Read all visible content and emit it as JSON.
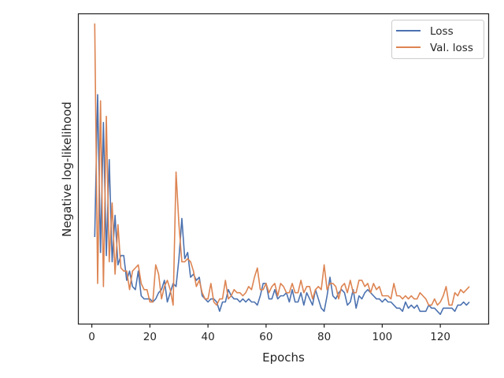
{
  "chart_data": {
    "type": "line",
    "title": "",
    "xlabel": "Epochs",
    "ylabel": "Negative log-likelihood",
    "xlim": [
      -4.5,
      136.5
    ],
    "ylim": [
      0.0,
      1.0
    ],
    "y_scale_note": "y tick labels not shown; values are relative (0 = bottom, 1 = top of axes)",
    "xticks": [
      0,
      20,
      40,
      60,
      80,
      100,
      120
    ],
    "grid": false,
    "legend_position": "top-right",
    "series": [
      {
        "name": "Loss",
        "color": "#4c72b0",
        "x": [
          1,
          2,
          3,
          4,
          5,
          6,
          7,
          8,
          9,
          10,
          11,
          12,
          13,
          14,
          15,
          16,
          17,
          18,
          19,
          20,
          21,
          22,
          23,
          24,
          25,
          26,
          27,
          28,
          29,
          30,
          31,
          32,
          33,
          34,
          35,
          36,
          37,
          38,
          39,
          40,
          41,
          42,
          43,
          44,
          45,
          46,
          47,
          48,
          49,
          50,
          51,
          52,
          53,
          54,
          55,
          56,
          57,
          58,
          59,
          60,
          61,
          62,
          63,
          64,
          65,
          66,
          67,
          68,
          69,
          70,
          71,
          72,
          73,
          74,
          75,
          76,
          77,
          78,
          79,
          80,
          81,
          82,
          83,
          84,
          85,
          86,
          87,
          88,
          89,
          90,
          91,
          92,
          93,
          94,
          95,
          96,
          97,
          98,
          99,
          100,
          101,
          102,
          103,
          104,
          105,
          106,
          107,
          108,
          109,
          110,
          111,
          112,
          113,
          114,
          115,
          116,
          117,
          118,
          119,
          120,
          121,
          122,
          123,
          124,
          125,
          126,
          127,
          128,
          129,
          130
        ],
        "y": [
          0.28,
          0.74,
          0.23,
          0.65,
          0.22,
          0.53,
          0.2,
          0.35,
          0.19,
          0.22,
          0.22,
          0.14,
          0.17,
          0.12,
          0.11,
          0.17,
          0.09,
          0.08,
          0.08,
          0.08,
          0.07,
          0.08,
          0.1,
          0.11,
          0.14,
          0.07,
          0.1,
          0.13,
          0.12,
          0.21,
          0.34,
          0.21,
          0.23,
          0.15,
          0.16,
          0.14,
          0.15,
          0.09,
          0.08,
          0.07,
          0.08,
          0.08,
          0.07,
          0.04,
          0.07,
          0.07,
          0.11,
          0.09,
          0.08,
          0.08,
          0.07,
          0.08,
          0.07,
          0.08,
          0.07,
          0.07,
          0.06,
          0.09,
          0.13,
          0.13,
          0.08,
          0.08,
          0.11,
          0.08,
          0.09,
          0.09,
          0.1,
          0.07,
          0.11,
          0.07,
          0.07,
          0.1,
          0.06,
          0.1,
          0.08,
          0.06,
          0.11,
          0.08,
          0.05,
          0.04,
          0.09,
          0.15,
          0.09,
          0.08,
          0.1,
          0.11,
          0.1,
          0.06,
          0.07,
          0.11,
          0.05,
          0.09,
          0.08,
          0.1,
          0.11,
          0.1,
          0.09,
          0.08,
          0.08,
          0.07,
          0.08,
          0.07,
          0.07,
          0.06,
          0.05,
          0.05,
          0.04,
          0.07,
          0.05,
          0.06,
          0.05,
          0.06,
          0.04,
          0.04,
          0.04,
          0.06,
          0.05,
          0.05,
          0.04,
          0.03,
          0.05,
          0.05,
          0.05,
          0.05,
          0.04,
          0.06,
          0.06,
          0.07,
          0.06,
          0.07
        ]
      },
      {
        "name": "Val. loss",
        "color": "#dd8452",
        "x": [
          1,
          2,
          3,
          4,
          5,
          6,
          7,
          8,
          9,
          10,
          11,
          12,
          13,
          14,
          15,
          16,
          17,
          18,
          19,
          20,
          21,
          22,
          23,
          24,
          25,
          26,
          27,
          28,
          29,
          30,
          31,
          32,
          33,
          34,
          35,
          36,
          37,
          38,
          39,
          40,
          41,
          42,
          43,
          44,
          45,
          46,
          47,
          48,
          49,
          50,
          51,
          52,
          53,
          54,
          55,
          56,
          57,
          58,
          59,
          60,
          61,
          62,
          63,
          64,
          65,
          66,
          67,
          68,
          69,
          70,
          71,
          72,
          73,
          74,
          75,
          76,
          77,
          78,
          79,
          80,
          81,
          82,
          83,
          84,
          85,
          86,
          87,
          88,
          89,
          90,
          91,
          92,
          93,
          94,
          95,
          96,
          97,
          98,
          99,
          100,
          101,
          102,
          103,
          104,
          105,
          106,
          107,
          108,
          109,
          110,
          111,
          112,
          113,
          114,
          115,
          116,
          117,
          118,
          119,
          120,
          121,
          122,
          123,
          124,
          125,
          126,
          127,
          128,
          129,
          130
        ],
        "y": [
          0.97,
          0.13,
          0.72,
          0.12,
          0.67,
          0.2,
          0.39,
          0.16,
          0.32,
          0.18,
          0.17,
          0.17,
          0.11,
          0.17,
          0.18,
          0.19,
          0.13,
          0.11,
          0.11,
          0.07,
          0.07,
          0.19,
          0.16,
          0.08,
          0.12,
          0.14,
          0.11,
          0.06,
          0.49,
          0.32,
          0.2,
          0.2,
          0.21,
          0.2,
          0.17,
          0.12,
          0.14,
          0.1,
          0.08,
          0.08,
          0.13,
          0.07,
          0.06,
          0.08,
          0.08,
          0.14,
          0.08,
          0.09,
          0.11,
          0.1,
          0.1,
          0.09,
          0.1,
          0.12,
          0.11,
          0.15,
          0.18,
          0.11,
          0.11,
          0.13,
          0.1,
          0.12,
          0.13,
          0.09,
          0.13,
          0.12,
          0.1,
          0.1,
          0.13,
          0.1,
          0.1,
          0.14,
          0.1,
          0.12,
          0.12,
          0.08,
          0.11,
          0.12,
          0.11,
          0.19,
          0.11,
          0.13,
          0.13,
          0.12,
          0.08,
          0.12,
          0.13,
          0.1,
          0.14,
          0.1,
          0.1,
          0.14,
          0.14,
          0.12,
          0.13,
          0.1,
          0.13,
          0.11,
          0.12,
          0.09,
          0.09,
          0.09,
          0.08,
          0.13,
          0.09,
          0.09,
          0.08,
          0.09,
          0.08,
          0.09,
          0.08,
          0.08,
          0.1,
          0.09,
          0.08,
          0.06,
          0.06,
          0.08,
          0.06,
          0.07,
          0.09,
          0.12,
          0.06,
          0.06,
          0.1,
          0.09,
          0.11,
          0.1,
          0.11,
          0.12
        ]
      }
    ]
  }
}
